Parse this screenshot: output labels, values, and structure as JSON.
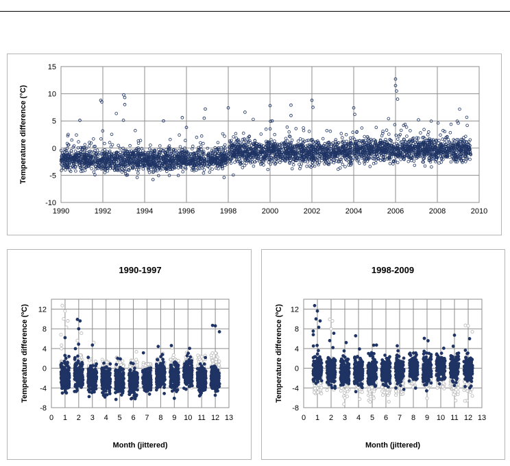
{
  "chart_data": [
    {
      "type": "scatter",
      "title": "",
      "xlabel": "",
      "ylabel": "Temperature difference (°C)",
      "xlim": [
        1990,
        2010
      ],
      "ylim": [
        -10,
        15
      ],
      "x_ticks": [
        "1990",
        "1992",
        "1994",
        "1996",
        "1998",
        "2000",
        "2002",
        "2004",
        "2006",
        "2008",
        "2010"
      ],
      "y_ticks": [
        "15",
        "10",
        "5",
        "0",
        "-5",
        "-10"
      ],
      "grid": true,
      "marker": "open-circle",
      "series_color": "#1f3464",
      "segments": [
        {
          "x_start": 1990.0,
          "x_end": 1996.9,
          "center": -2.2,
          "spread": 1.3
        },
        {
          "x_start": 1997.0,
          "x_end": 1998.0,
          "center": -2.0,
          "spread": 1.2
        },
        {
          "x_start": 1998.0,
          "x_end": 2004.0,
          "center": -0.8,
          "spread": 1.4
        },
        {
          "x_start": 2004.0,
          "x_end": 2009.6,
          "center": -0.4,
          "spread": 1.4
        }
      ],
      "outliers": [
        {
          "x": 1991.9,
          "y": 8.8
        },
        {
          "x": 1991.95,
          "y": 8.5
        },
        {
          "x": 1993.0,
          "y": 9.8
        },
        {
          "x": 1993.05,
          "y": 9.3
        },
        {
          "x": 1993.05,
          "y": 8.0
        },
        {
          "x": 1990.9,
          "y": 5.1
        },
        {
          "x": 1994.9,
          "y": 5.0
        },
        {
          "x": 1995.8,
          "y": 5.6
        },
        {
          "x": 1996.0,
          "y": 3.8
        },
        {
          "x": 1996.9,
          "y": 7.2
        },
        {
          "x": 1996.85,
          "y": 5.5
        },
        {
          "x": 1998.0,
          "y": 7.4
        },
        {
          "x": 1998.8,
          "y": 6.6
        },
        {
          "x": 2000.0,
          "y": 7.8
        },
        {
          "x": 2000.1,
          "y": 5.0
        },
        {
          "x": 2001.0,
          "y": 7.9
        },
        {
          "x": 2001.0,
          "y": 6.0
        },
        {
          "x": 2002.0,
          "y": 8.8
        },
        {
          "x": 2002.05,
          "y": 7.5
        },
        {
          "x": 2004.0,
          "y": 7.4
        },
        {
          "x": 2004.05,
          "y": 6.2
        },
        {
          "x": 2006.0,
          "y": 12.7
        },
        {
          "x": 2006.0,
          "y": 11.5
        },
        {
          "x": 2006.05,
          "y": 10.5
        },
        {
          "x": 2006.1,
          "y": 9.0
        },
        {
          "x": 2007.1,
          "y": 5.2
        },
        {
          "x": 2009.0,
          "y": 4.6
        },
        {
          "x": 1994.4,
          "y": -5.8
        },
        {
          "x": 1997.8,
          "y": -5.4
        }
      ]
    },
    {
      "type": "scatter",
      "title": "1990-1997",
      "xlabel": "Month (jittered)",
      "ylabel": "Temperature difference (ºC)",
      "xlim": [
        0,
        13
      ],
      "ylim": [
        -8,
        14
      ],
      "x_ticks": [
        "0",
        "1",
        "2",
        "3",
        "4",
        "5",
        "6",
        "7",
        "8",
        "9",
        "10",
        "11",
        "12",
        "13"
      ],
      "y_ticks": [
        "12",
        "8",
        "4",
        "0",
        "-4",
        "-8"
      ],
      "grid": true,
      "highlight_color": "#1f3464",
      "background_color": "#bdbdbd",
      "highlight_monthly_center": [
        -2.0,
        -1.5,
        -2.2,
        -2.5,
        -2.7,
        -2.9,
        -2.5,
        -1.4,
        -1.8,
        -1.3,
        -2.4,
        -2.2
      ],
      "background_monthly_center": [
        -0.3,
        -0.4,
        -0.7,
        -0.9,
        -0.9,
        -0.6,
        -0.6,
        -0.2,
        -0.2,
        0.0,
        -0.2,
        -0.2
      ],
      "highlight_outliers": [
        {
          "x": 1.9,
          "y": 9.9
        },
        {
          "x": 2.1,
          "y": 9.6
        },
        {
          "x": 2.0,
          "y": 8.0
        },
        {
          "x": 11.8,
          "y": 8.7
        },
        {
          "x": 12.0,
          "y": 8.6
        },
        {
          "x": 12.3,
          "y": 7.4
        },
        {
          "x": 1.0,
          "y": 6.2
        },
        {
          "x": 3.0,
          "y": 4.7
        },
        {
          "x": 9.0,
          "y": -6.1
        }
      ],
      "background_outliers": [
        {
          "x": 0.8,
          "y": 12.7
        },
        {
          "x": 1.0,
          "y": 11.6
        },
        {
          "x": 0.9,
          "y": 10.0
        },
        {
          "x": 1.2,
          "y": 9.6
        },
        {
          "x": 1.1,
          "y": 8.3
        },
        {
          "x": 2.2,
          "y": 7.1
        },
        {
          "x": 1.9,
          "y": 5.6
        },
        {
          "x": 0.7,
          "y": 6.8
        },
        {
          "x": 3.1,
          "y": 5.2
        }
      ]
    },
    {
      "type": "scatter",
      "title": "1998-2009",
      "xlabel": "Month (jittered)",
      "ylabel": "Temperature difference (ºC)",
      "xlim": [
        0,
        13
      ],
      "ylim": [
        -8,
        14
      ],
      "x_ticks": [
        "0",
        "1",
        "2",
        "3",
        "4",
        "5",
        "6",
        "7",
        "8",
        "9",
        "10",
        "11",
        "12",
        "13"
      ],
      "y_ticks": [
        "12",
        "8",
        "4",
        "0",
        "-4",
        "-8"
      ],
      "grid": true,
      "highlight_color": "#1f3464",
      "background_color": "#bdbdbd",
      "highlight_monthly_center": [
        -0.3,
        -0.4,
        -0.7,
        -0.9,
        -0.9,
        -0.6,
        -0.6,
        -0.2,
        -0.2,
        0.0,
        -0.2,
        -0.2
      ],
      "background_monthly_center": [
        -2.0,
        -1.5,
        -2.2,
        -2.5,
        -2.7,
        -2.9,
        -2.5,
        -1.4,
        -1.8,
        -1.3,
        -2.4,
        -2.2
      ],
      "highlight_outliers": [
        {
          "x": 0.8,
          "y": 12.7
        },
        {
          "x": 1.0,
          "y": 11.6
        },
        {
          "x": 0.9,
          "y": 10.0
        },
        {
          "x": 1.2,
          "y": 9.6
        },
        {
          "x": 1.1,
          "y": 8.3
        },
        {
          "x": 2.2,
          "y": 7.1
        },
        {
          "x": 1.9,
          "y": 5.6
        },
        {
          "x": 0.7,
          "y": 6.8
        },
        {
          "x": 3.1,
          "y": 5.2
        },
        {
          "x": 11.0,
          "y": 6.7
        },
        {
          "x": 12.1,
          "y": 6.0
        }
      ],
      "background_outliers": [
        {
          "x": 1.9,
          "y": 9.9
        },
        {
          "x": 2.1,
          "y": 9.6
        },
        {
          "x": 2.0,
          "y": 8.0
        },
        {
          "x": 11.8,
          "y": 8.7
        },
        {
          "x": 12.0,
          "y": 8.6
        },
        {
          "x": 12.3,
          "y": 7.4
        },
        {
          "x": 3.0,
          "y": -6.0
        },
        {
          "x": 9.0,
          "y": -6.1
        },
        {
          "x": 12.3,
          "y": -5.6
        }
      ]
    }
  ]
}
